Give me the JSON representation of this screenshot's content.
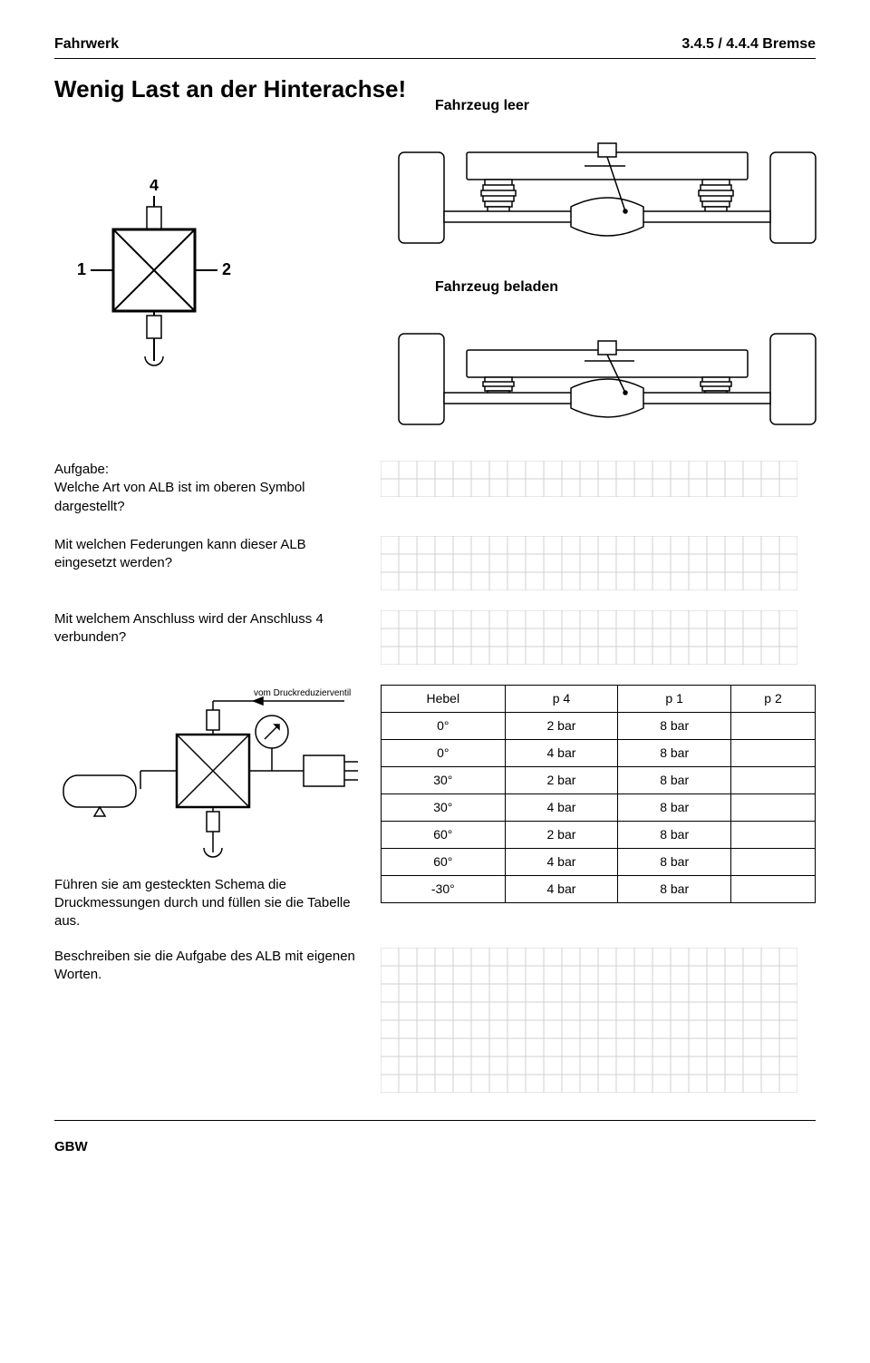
{
  "header": {
    "left": "Fahrwerk",
    "right": "3.4.5 / 4.4.4 Bremse"
  },
  "title": "Wenig Last an der Hinterachse!",
  "labels": {
    "fahrzeug_leer": "Fahrzeug leer",
    "fahrzeug_beladen": "Fahrzeug beladen",
    "valve_top": "4",
    "valve_left": "1",
    "valve_right": "2",
    "vom_druckreduzierventil": "vom Druckreduzierventil",
    "aufgabe": "Aufgabe:"
  },
  "questions": {
    "q1": "Welche Art von ALB ist im oberen Symbol dargestellt?",
    "q2": "Mit welchen Federungen kann dieser ALB eingesetzt werden?",
    "q3": "Mit welchem Anschluss wird der Anschluss 4 verbunden?",
    "q4": "Führen sie am gesteckten Schema die Druckmessungen durch und füllen sie die Tabelle aus.",
    "q5": "Beschreiben sie die Aufgabe des ALB mit eigenen Worten."
  },
  "table": {
    "headers": [
      "Hebel",
      "p 4",
      "p 1",
      "p 2"
    ],
    "rows": [
      [
        "0°",
        "2 bar",
        "8 bar",
        ""
      ],
      [
        "0°",
        "4 bar",
        "8 bar",
        ""
      ],
      [
        "30°",
        "2 bar",
        "8 bar",
        ""
      ],
      [
        "30°",
        "4 bar",
        "8 bar",
        ""
      ],
      [
        "60°",
        "2 bar",
        "8 bar",
        ""
      ],
      [
        "60°",
        "4 bar",
        "8 bar",
        ""
      ],
      [
        "-30°",
        "4 bar",
        "8 bar",
        ""
      ]
    ]
  },
  "grid": {
    "cell": 20,
    "q_cols": 23,
    "q1_rows": 2,
    "q2_rows": 3,
    "q3_rows": 3,
    "q5_rows": 8,
    "line_color": "#d0d0d0",
    "bg": "#ffffff"
  },
  "colors": {
    "stroke": "#000000",
    "text": "#000000"
  },
  "footer": "GBW"
}
